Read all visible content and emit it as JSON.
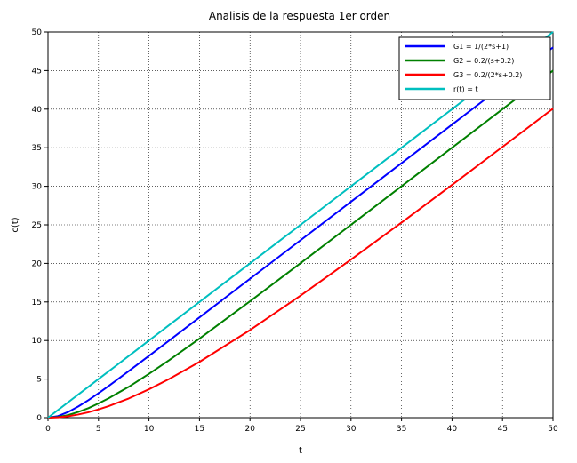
{
  "chart_data": {
    "type": "line",
    "title": "Analisis de la respuesta 1er orden",
    "xlabel": "t",
    "ylabel": "c(t)",
    "xlim": [
      0,
      50
    ],
    "ylim": [
      0,
      50
    ],
    "xticks": [
      0,
      5,
      10,
      15,
      20,
      25,
      30,
      35,
      40,
      45,
      50
    ],
    "yticks": [
      0,
      5,
      10,
      15,
      20,
      25,
      30,
      35,
      40,
      45,
      50
    ],
    "grid": true,
    "legend_position": "top-right",
    "x": [
      0,
      1,
      2,
      3,
      4,
      5,
      6,
      8,
      10,
      12,
      15,
      20,
      25,
      30,
      35,
      40,
      45,
      50
    ],
    "series": [
      {
        "name": "G1 = 1/(2*s+1)",
        "color": "#0000ff",
        "values": [
          0,
          0.21,
          0.74,
          1.45,
          2.27,
          3.16,
          4.1,
          6.04,
          8.01,
          10.0,
          13.0,
          18.0,
          23.0,
          28.0,
          33.0,
          38.0,
          43.0,
          48.0
        ]
      },
      {
        "name": "G2 = 0.2/(s+0.2)",
        "color": "#008000",
        "values": [
          0,
          0.09,
          0.34,
          0.74,
          1.23,
          1.84,
          2.51,
          4.0,
          5.68,
          7.45,
          10.25,
          15.09,
          20.03,
          25.01,
          30.0,
          35.0,
          40.0,
          45.0
        ]
      },
      {
        "name": "G3 = 0.2/(2*s+0.2)",
        "color": "#ff0000",
        "values": [
          0,
          0.05,
          0.19,
          0.41,
          0.7,
          1.07,
          1.49,
          2.49,
          3.68,
          5.01,
          7.23,
          11.35,
          15.82,
          20.5,
          25.3,
          30.18,
          35.11,
          40.07
        ]
      },
      {
        "name": "r(t) = t",
        "color": "#00bfbf",
        "values": [
          0,
          1,
          2,
          3,
          4,
          5,
          6,
          8,
          10,
          12,
          15,
          20,
          25,
          30,
          35,
          40,
          45,
          50
        ]
      }
    ]
  }
}
